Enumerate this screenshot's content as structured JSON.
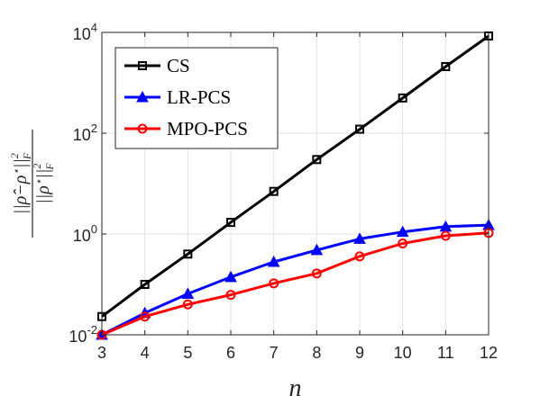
{
  "chart_data": {
    "type": "line",
    "title": "",
    "xlabel": "n",
    "ylabel": "||ρ̂−ρ*||²_F / ||ρ*||²_F",
    "x": [
      3,
      4,
      5,
      6,
      7,
      8,
      9,
      10,
      11,
      12
    ],
    "xlim": [
      3,
      12
    ],
    "ylim": [
      0.01,
      10000
    ],
    "yscale": "log",
    "x_ticks": [
      "3",
      "4",
      "5",
      "6",
      "7",
      "8",
      "9",
      "10",
      "11",
      "12"
    ],
    "y_ticks": [
      {
        "value": 0.01,
        "base": "10",
        "exp": "-2"
      },
      {
        "value": 1,
        "base": "10",
        "exp": "0"
      },
      {
        "value": 100,
        "base": "10",
        "exp": "2"
      },
      {
        "value": 10000,
        "base": "10",
        "exp": "4"
      }
    ],
    "grid": true,
    "legend_position": "top-left",
    "series": [
      {
        "name": "CS",
        "color": "#000000",
        "marker": "square",
        "values": [
          0.023,
          0.1,
          0.4,
          1.7,
          7,
          30,
          120,
          500,
          2100,
          8500
        ]
      },
      {
        "name": "LR-PCS",
        "color": "#0000ff",
        "marker": "triangle",
        "values": [
          0.01,
          0.027,
          0.065,
          0.14,
          0.28,
          0.48,
          0.8,
          1.1,
          1.4,
          1.5
        ]
      },
      {
        "name": "MPO-PCS",
        "color": "#ff0000",
        "marker": "circle",
        "values": [
          0.01,
          0.023,
          0.04,
          0.062,
          0.105,
          0.165,
          0.36,
          0.65,
          0.92,
          1.05
        ]
      }
    ]
  }
}
